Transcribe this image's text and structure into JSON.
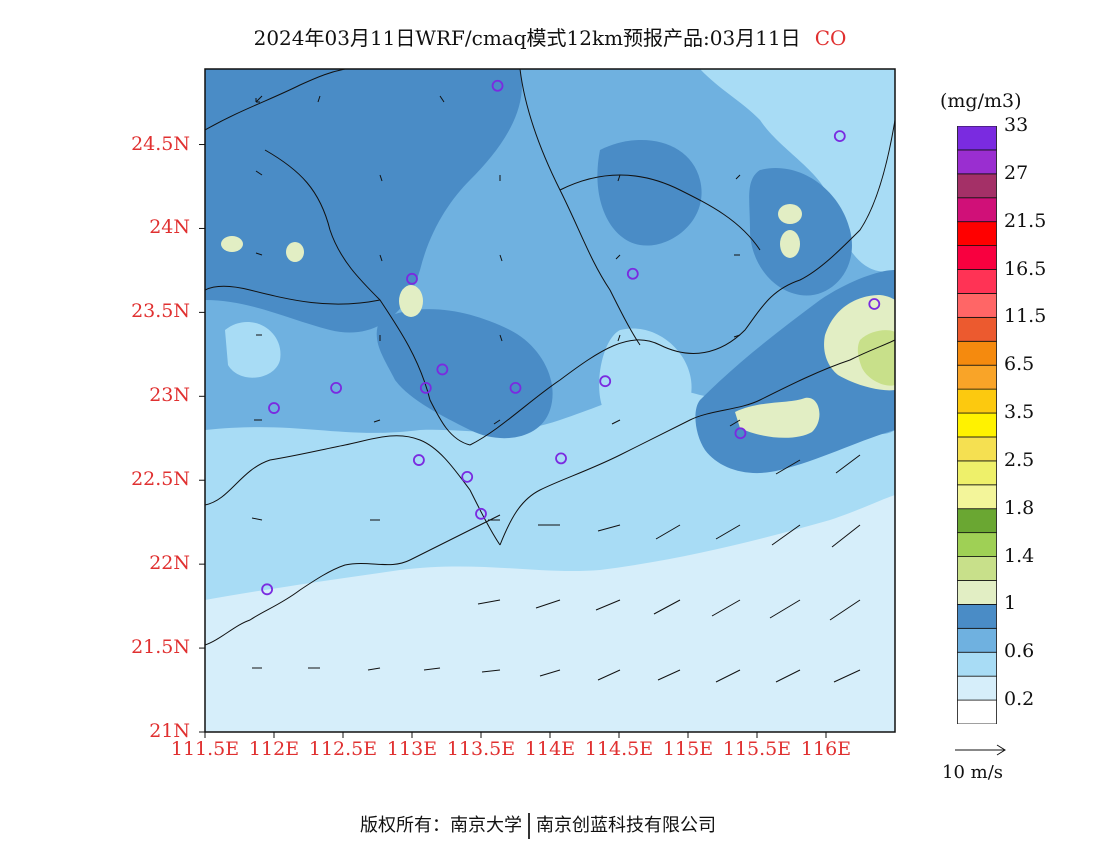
{
  "title": {
    "text": "2024年03月11日WRF/cmaq模式12km预报产品:03月11日",
    "pollutant": "CO"
  },
  "map": {
    "lat_ticks": [
      "24.5N",
      "24N",
      "23.5N",
      "23N",
      "22.5N",
      "22N",
      "21.5N",
      "21N"
    ],
    "lon_ticks": [
      "111.5E",
      "112E",
      "112.5E",
      "113E",
      "113.5E",
      "114E",
      "114.5E",
      "115E",
      "115.5E",
      "116E"
    ],
    "lon_range": [
      111.5,
      116.5
    ],
    "lat_range": [
      21.0,
      24.95
    ],
    "station_markers": [
      [
        113.62,
        24.85
      ],
      [
        116.1,
        24.55
      ],
      [
        113.0,
        23.7
      ],
      [
        114.6,
        23.73
      ],
      [
        116.35,
        23.55
      ],
      [
        112.45,
        23.05
      ],
      [
        112.0,
        22.93
      ],
      [
        113.1,
        23.05
      ],
      [
        113.22,
        23.16
      ],
      [
        113.75,
        23.05
      ],
      [
        114.4,
        23.09
      ],
      [
        115.38,
        22.78
      ],
      [
        113.05,
        22.62
      ],
      [
        113.4,
        22.52
      ],
      [
        114.08,
        22.63
      ],
      [
        113.5,
        22.3
      ],
      [
        111.95,
        21.85
      ]
    ],
    "colors": {
      "sea": "#d6eefa",
      "light": "#a8dcf5",
      "mid": "#6fb1e0",
      "dark": "#4a8cc6",
      "pale_yellow": "#e2eec4",
      "light_green": "#c8e08a",
      "marker": "#7a2be0"
    }
  },
  "colorbar": {
    "unit": "(mg/m3)",
    "colors": [
      "#ffffff",
      "#d6eefa",
      "#a8dcf5",
      "#6fb1e0",
      "#4a8cc6",
      "#e2eec4",
      "#c8e08a",
      "#9fd055",
      "#6aa732",
      "#f3f59a",
      "#eef06a",
      "#f5e051",
      "#fff200",
      "#fcc90f",
      "#f9a428",
      "#f58a0e",
      "#ec5a2f",
      "#ff6666",
      "#ff3355",
      "#f8003f",
      "#ff0000",
      "#d01078",
      "#a43067",
      "#9a2ed0",
      "#7a2be0"
    ],
    "labels": [
      "0.2",
      "0.6",
      "1",
      "1.4",
      "1.8",
      "2.5",
      "3.5",
      "6.5",
      "11.5",
      "16.5",
      "21.5",
      "27",
      "33"
    ]
  },
  "vector_ref": "10 m/s",
  "footer": {
    "left": "版权所有：南京大学",
    "right": "南京创蓝科技有限公司"
  }
}
